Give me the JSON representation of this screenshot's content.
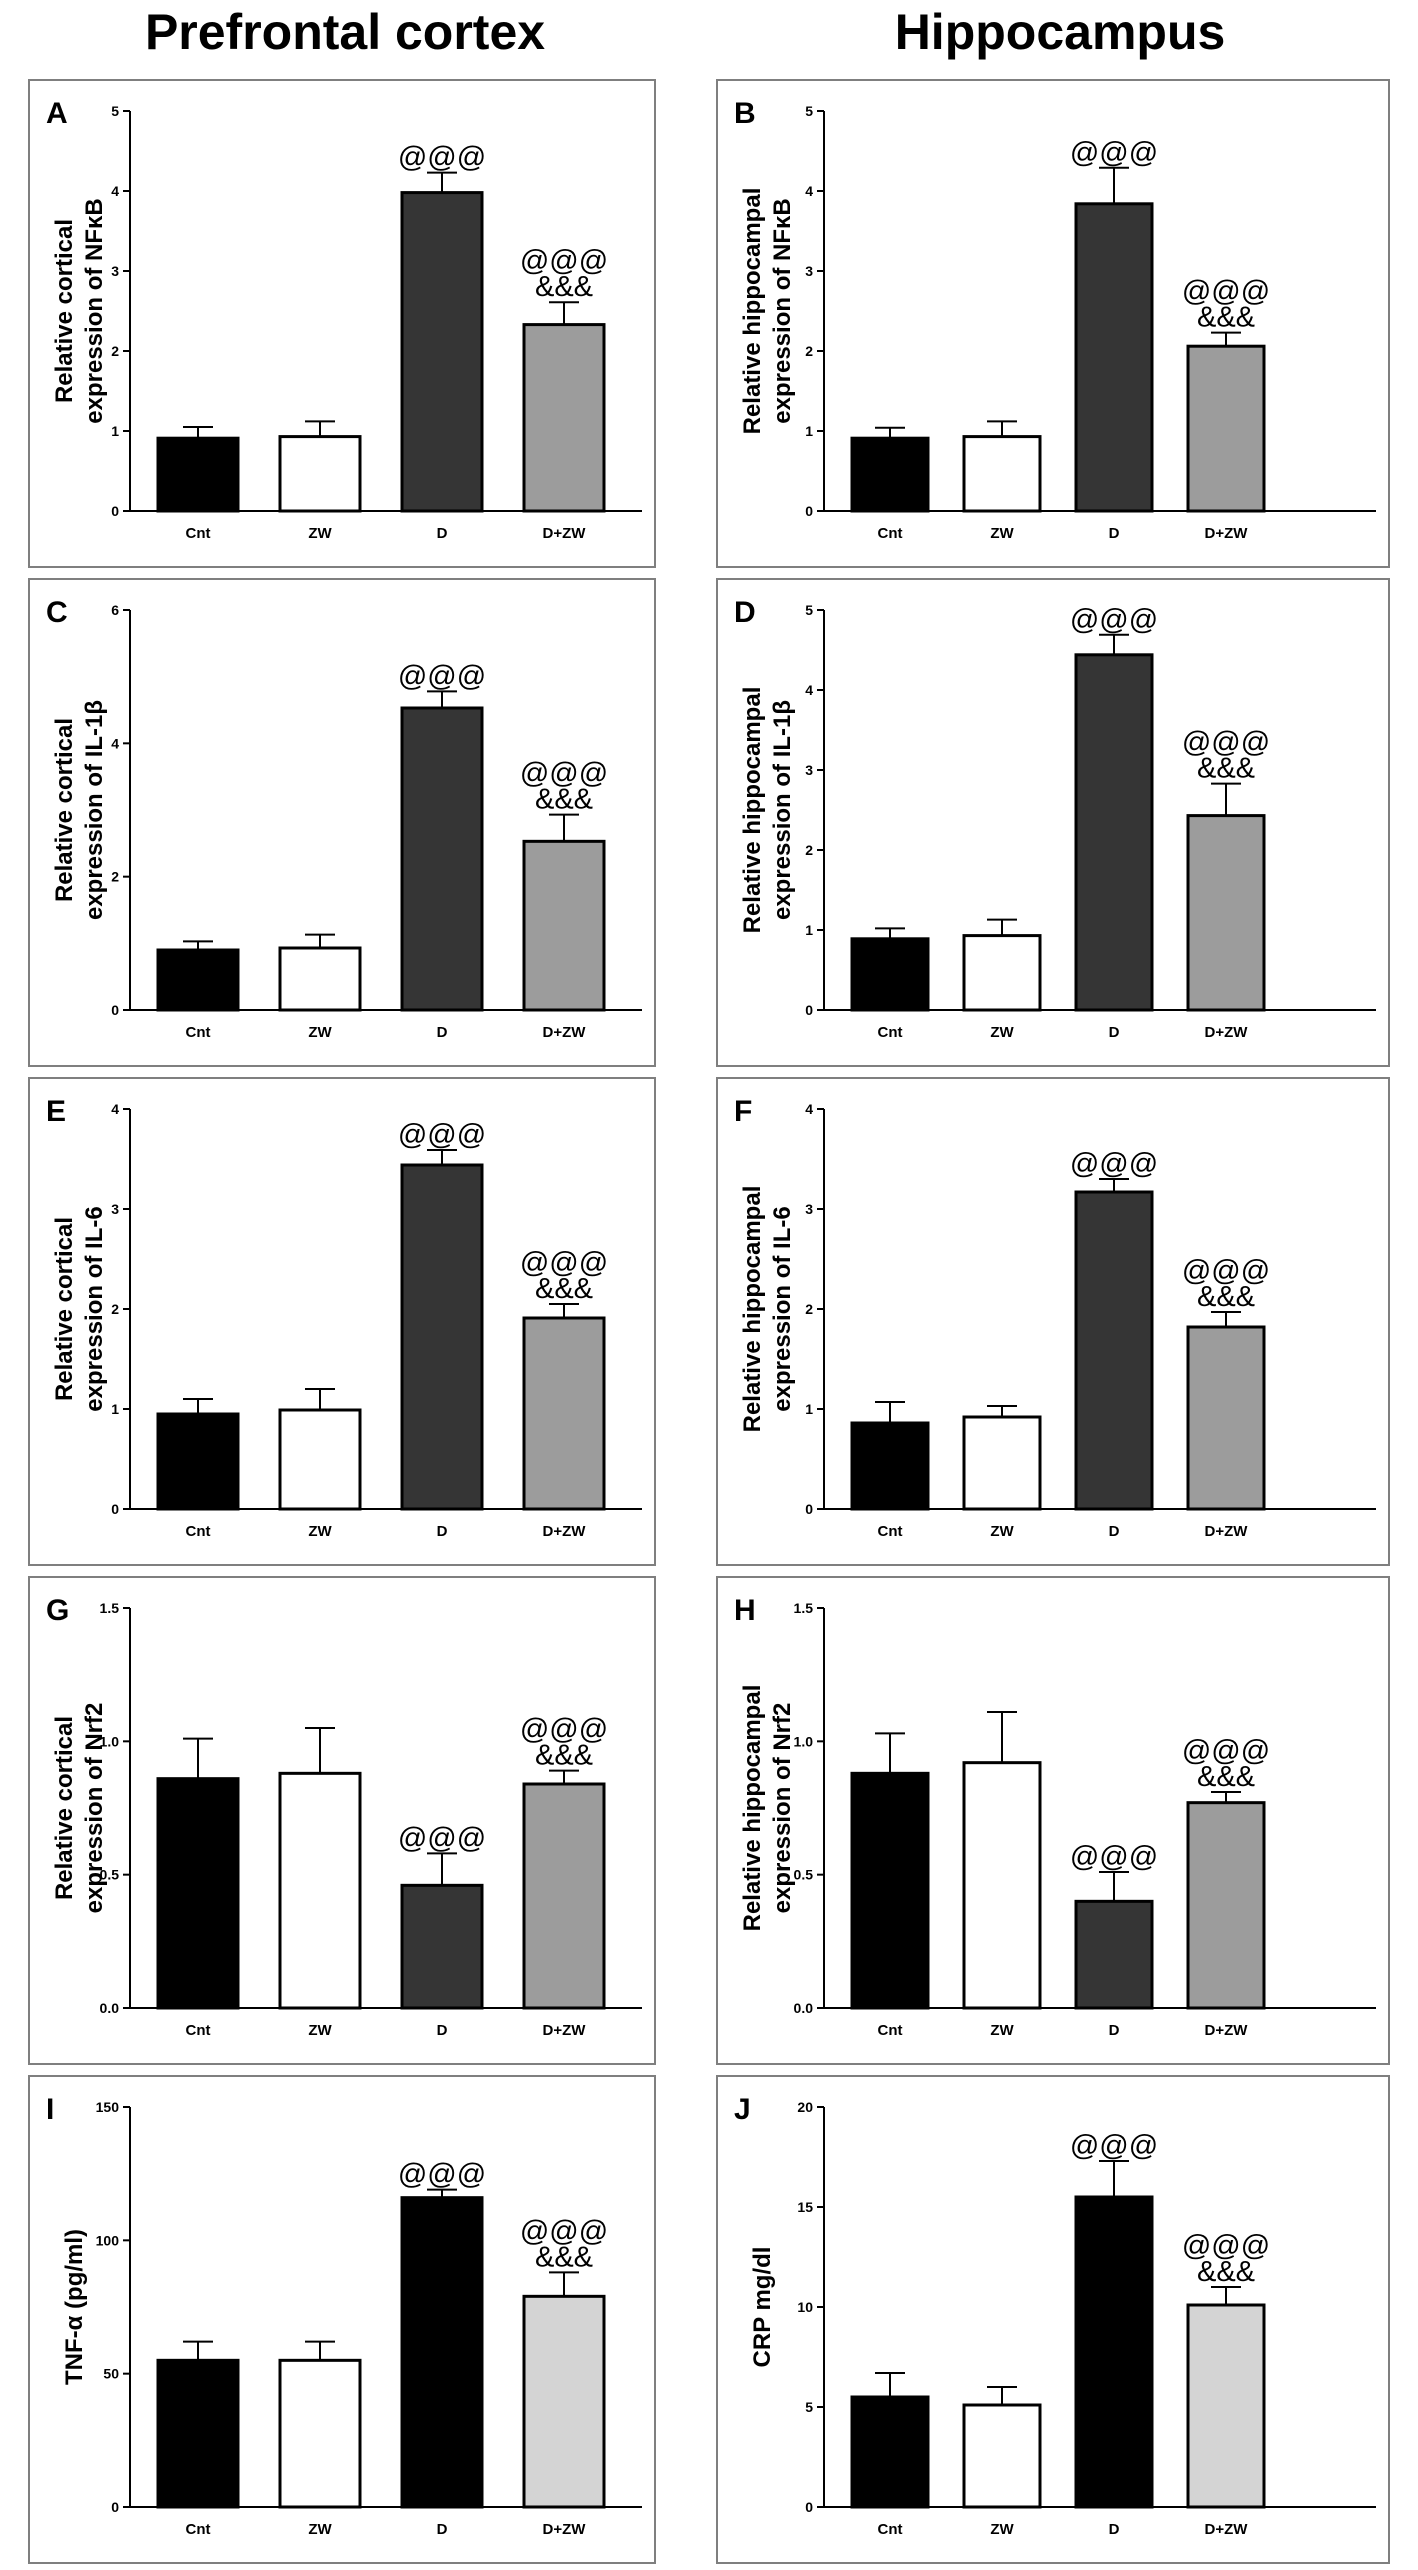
{
  "column_titles": {
    "left": "Prefrontal cortex",
    "right": "Hippocampus"
  },
  "colors": {
    "black": "#000000",
    "white": "#ffffff",
    "dark_gray": "#353535",
    "mid_gray": "#9c9c9c",
    "light_gray": "#d4d4d4"
  },
  "chart_data": [
    {
      "panel": "A",
      "type": "bar",
      "region": "Prefrontal cortex",
      "ylabel": [
        "Relative cortical",
        "expression of NFκB"
      ],
      "categories": [
        "Cnt",
        "ZW",
        "D",
        "D+ZW"
      ],
      "values": [
        0.91,
        0.93,
        3.98,
        2.33
      ],
      "errors": [
        0.14,
        0.19,
        0.25,
        0.28
      ],
      "annotations": [
        "",
        "",
        "@@@",
        "@@@\n&&&"
      ],
      "fills": [
        "black",
        "white",
        "dark_gray",
        "mid_gray"
      ],
      "ylim": [
        0,
        5
      ],
      "yticks": [
        "0",
        "1",
        "2",
        "3",
        "4",
        "5"
      ]
    },
    {
      "panel": "B",
      "type": "bar",
      "region": "Hippocampus",
      "ylabel": [
        "Relative hippocampal",
        "expression of NFκB"
      ],
      "categories": [
        "Cnt",
        "ZW",
        "D",
        "D+ZW"
      ],
      "values": [
        0.91,
        0.93,
        3.84,
        2.06
      ],
      "errors": [
        0.13,
        0.19,
        0.45,
        0.17
      ],
      "annotations": [
        "",
        "",
        "@@@",
        "@@@\n&&&"
      ],
      "fills": [
        "black",
        "white",
        "dark_gray",
        "mid_gray"
      ],
      "ylim": [
        0,
        5
      ],
      "yticks": [
        "0",
        "1",
        "2",
        "3",
        "4",
        "5"
      ]
    },
    {
      "panel": "C",
      "type": "bar",
      "region": "Prefrontal cortex",
      "ylabel": [
        "Relative cortical",
        "expression of IL-1β"
      ],
      "categories": [
        "Cnt",
        "ZW",
        "D",
        "D+ZW"
      ],
      "values": [
        0.9,
        0.93,
        4.53,
        2.53
      ],
      "errors": [
        0.13,
        0.2,
        0.25,
        0.4
      ],
      "annotations": [
        "",
        "",
        "@@@",
        "@@@\n&&&"
      ],
      "fills": [
        "black",
        "white",
        "dark_gray",
        "mid_gray"
      ],
      "ylim": [
        0,
        6
      ],
      "yticks": [
        "0",
        "2",
        "4",
        "6"
      ]
    },
    {
      "panel": "D",
      "type": "bar",
      "region": "Hippocampus",
      "ylabel": [
        "Relative hippocampal",
        "expression of IL-1β"
      ],
      "categories": [
        "Cnt",
        "ZW",
        "D",
        "D+ZW"
      ],
      "values": [
        0.89,
        0.93,
        4.44,
        2.43
      ],
      "errors": [
        0.13,
        0.2,
        0.25,
        0.4
      ],
      "annotations": [
        "",
        "",
        "@@@",
        "@@@\n&&&"
      ],
      "fills": [
        "black",
        "white",
        "dark_gray",
        "mid_gray"
      ],
      "ylim": [
        0,
        5
      ],
      "yticks": [
        "0",
        "1",
        "2",
        "3",
        "4",
        "5"
      ]
    },
    {
      "panel": "E",
      "type": "bar",
      "region": "Prefrontal cortex",
      "ylabel": [
        "Relative cortical",
        "expression of IL-6"
      ],
      "categories": [
        "Cnt",
        "ZW",
        "D",
        "D+ZW"
      ],
      "values": [
        0.95,
        0.99,
        3.44,
        1.91
      ],
      "errors": [
        0.15,
        0.21,
        0.15,
        0.14
      ],
      "annotations": [
        "",
        "",
        "@@@",
        "@@@\n&&&"
      ],
      "fills": [
        "black",
        "white",
        "dark_gray",
        "mid_gray"
      ],
      "ylim": [
        0,
        4
      ],
      "yticks": [
        "0",
        "1",
        "2",
        "3",
        "4"
      ]
    },
    {
      "panel": "F",
      "type": "bar",
      "region": "Hippocampus",
      "ylabel": [
        "Relative hippocampal",
        "expression of IL-6"
      ],
      "categories": [
        "Cnt",
        "ZW",
        "D",
        "D+ZW"
      ],
      "values": [
        0.86,
        0.92,
        3.17,
        1.82
      ],
      "errors": [
        0.21,
        0.11,
        0.13,
        0.15
      ],
      "annotations": [
        "",
        "",
        "@@@",
        "@@@\n&&&"
      ],
      "fills": [
        "black",
        "white",
        "dark_gray",
        "mid_gray"
      ],
      "ylim": [
        0,
        4
      ],
      "yticks": [
        "0",
        "1",
        "2",
        "3",
        "4"
      ]
    },
    {
      "panel": "G",
      "type": "bar",
      "region": "Prefrontal cortex",
      "ylabel": [
        "Relative cortical",
        "expression of Nrf2"
      ],
      "categories": [
        "Cnt",
        "ZW",
        "D",
        "D+ZW"
      ],
      "values": [
        0.86,
        0.88,
        0.46,
        0.84
      ],
      "errors": [
        0.15,
        0.17,
        0.12,
        0.05
      ],
      "annotations": [
        "",
        "",
        "@@@",
        "@@@\n&&&"
      ],
      "fills": [
        "black",
        "white",
        "dark_gray",
        "mid_gray"
      ],
      "ylim": [
        0,
        1.5
      ],
      "yticks": [
        "0.0",
        "0.5",
        "1.0",
        "1.5"
      ]
    },
    {
      "panel": "H",
      "type": "bar",
      "region": "Hippocampus",
      "ylabel": [
        "Relative hippocampal",
        "expression of Nrf2"
      ],
      "categories": [
        "Cnt",
        "ZW",
        "D",
        "D+ZW"
      ],
      "values": [
        0.88,
        0.92,
        0.4,
        0.77
      ],
      "errors": [
        0.15,
        0.19,
        0.11,
        0.04
      ],
      "annotations": [
        "",
        "",
        "@@@",
        "@@@\n&&&"
      ],
      "fills": [
        "black",
        "white",
        "dark_gray",
        "mid_gray"
      ],
      "ylim": [
        0,
        1.5
      ],
      "yticks": [
        "0.0",
        "0.5",
        "1.0",
        "1.5"
      ]
    },
    {
      "panel": "I",
      "type": "bar",
      "region": "Prefrontal cortex",
      "ylabel": [
        "TNF-α (pg/ml)"
      ],
      "categories": [
        "Cnt",
        "ZW",
        "D",
        "D+ZW"
      ],
      "values": [
        55,
        55,
        116,
        79
      ],
      "errors": [
        7,
        7,
        3,
        9
      ],
      "annotations": [
        "",
        "",
        "@@@",
        "@@@\n&&&"
      ],
      "fills": [
        "black",
        "white",
        "black",
        "light_gray"
      ],
      "ylim": [
        0,
        150
      ],
      "yticks": [
        "0",
        "50",
        "100",
        "150"
      ]
    },
    {
      "panel": "J",
      "type": "bar",
      "region": "Hippocampus",
      "ylabel": [
        "CRP mg/dl"
      ],
      "categories": [
        "Cnt",
        "ZW",
        "D",
        "D+ZW"
      ],
      "values": [
        5.5,
        5.1,
        15.5,
        10.1
      ],
      "errors": [
        1.2,
        0.9,
        1.8,
        0.9
      ],
      "annotations": [
        "",
        "",
        "@@@",
        "@@@\n&&&"
      ],
      "fills": [
        "black",
        "white",
        "black",
        "light_gray"
      ],
      "ylim": [
        0,
        20
      ],
      "yticks": [
        "0",
        "5",
        "10",
        "15",
        "20"
      ]
    }
  ]
}
